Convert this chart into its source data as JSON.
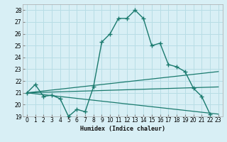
{
  "title": "",
  "xlabel": "Humidex (Indice chaleur)",
  "bg_color": "#d8eff5",
  "grid_color": "#b8dde5",
  "line_color": "#1a7a6e",
  "xlim": [
    -0.5,
    23.5
  ],
  "ylim": [
    19,
    28.5
  ],
  "xticks": [
    0,
    1,
    2,
    3,
    4,
    5,
    6,
    7,
    8,
    9,
    10,
    11,
    12,
    13,
    14,
    15,
    16,
    17,
    18,
    19,
    20,
    21,
    22,
    23
  ],
  "yticks": [
    19,
    20,
    21,
    22,
    23,
    24,
    25,
    26,
    27,
    28
  ],
  "curve_x": [
    0,
    1,
    2,
    3,
    4,
    5,
    6,
    7,
    8,
    9,
    10,
    11,
    12,
    13,
    14,
    15,
    16,
    17,
    18,
    19,
    20,
    21,
    22
  ],
  "curve_y": [
    21.0,
    21.7,
    20.7,
    20.8,
    20.5,
    19.0,
    19.6,
    19.4,
    21.5,
    25.3,
    26.0,
    27.3,
    27.3,
    28.0,
    27.3,
    25.0,
    25.2,
    23.4,
    23.2,
    22.8,
    21.4,
    20.7,
    19.2
  ],
  "line2_x": [
    0,
    23
  ],
  "line2_y": [
    21.0,
    22.8
  ],
  "line3_x": [
    0,
    23
  ],
  "line3_y": [
    21.0,
    21.5
  ],
  "line4_x": [
    0,
    23
  ],
  "line4_y": [
    21.0,
    19.2
  ]
}
